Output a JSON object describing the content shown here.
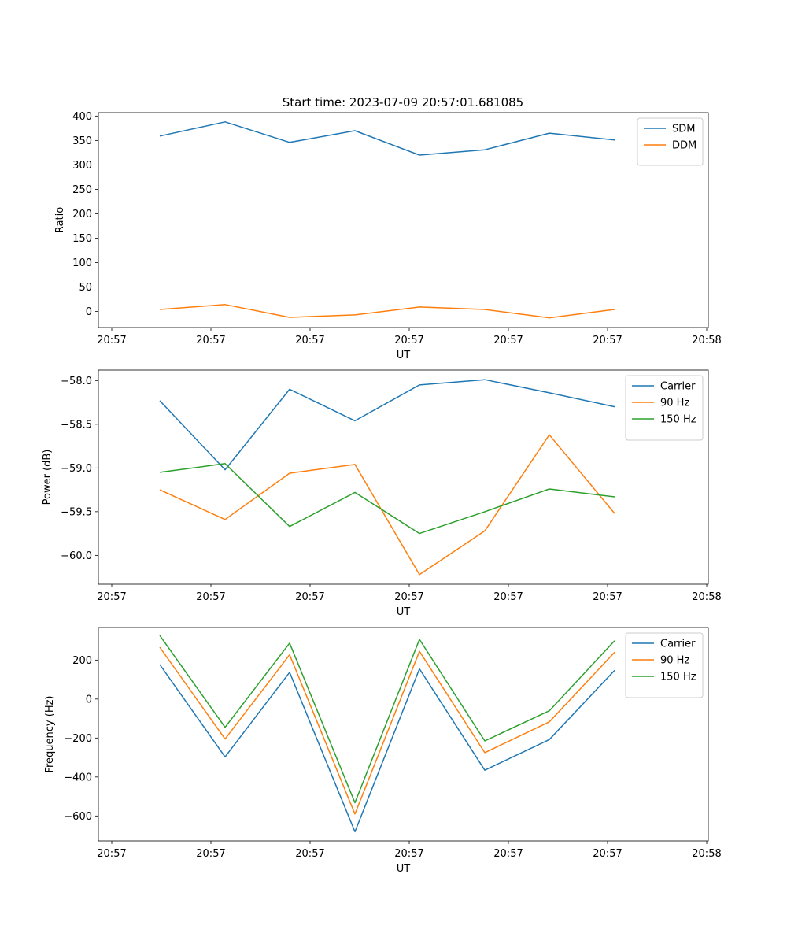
{
  "title": "Start time: 2023-07-09 20:57:01.681085",
  "colors": {
    "blue": "#1f77b4",
    "orange": "#ff7f0e",
    "green": "#2ca02c"
  },
  "chart_data": [
    {
      "type": "line",
      "xlabel": "UT",
      "ylabel": "Ratio",
      "x_tick_labels": [
        "20:57",
        "20:57",
        "20:57",
        "20:57",
        "20:57",
        "20:57",
        "20:58"
      ],
      "y_ticks": [
        0,
        50,
        100,
        150,
        200,
        250,
        300,
        350,
        400
      ],
      "y_tick_labels": [
        "0",
        "50",
        "100",
        "150",
        "200",
        "250",
        "300",
        "350",
        "400"
      ],
      "ylim": [
        -33,
        407
      ],
      "legend_position": "top-right",
      "series": [
        {
          "name": "SDM",
          "color": "#1f77b4",
          "values": [
            359,
            388,
            346,
            370,
            320,
            331,
            365,
            351
          ]
        },
        {
          "name": "DDM",
          "color": "#ff7f0e",
          "values": [
            4,
            14,
            -12,
            -7,
            9,
            4,
            -13,
            4
          ]
        }
      ]
    },
    {
      "type": "line",
      "xlabel": "UT",
      "ylabel": "Power (dB)",
      "x_tick_labels": [
        "20:57",
        "20:57",
        "20:57",
        "20:57",
        "20:57",
        "20:57",
        "20:58"
      ],
      "y_ticks": [
        -60.0,
        -59.5,
        -59.0,
        -58.5,
        -58.0
      ],
      "y_tick_labels": [
        "−60.0",
        "−59.5",
        "−59.0",
        "−58.5",
        "−58.0"
      ],
      "ylim": [
        -60.33,
        -57.88
      ],
      "legend_position": "top-right",
      "series": [
        {
          "name": "Carrier",
          "color": "#1f77b4",
          "values": [
            -58.23,
            -59.02,
            -58.1,
            -58.46,
            -58.05,
            -57.99,
            -58.14,
            -58.3
          ]
        },
        {
          "name": "90 Hz",
          "color": "#ff7f0e",
          "values": [
            -59.25,
            -59.59,
            -59.06,
            -58.96,
            -60.22,
            -59.72,
            -58.62,
            -59.52
          ]
        },
        {
          "name": "150 Hz",
          "color": "#2ca02c",
          "values": [
            -59.05,
            -58.95,
            -59.67,
            -59.28,
            -59.75,
            -59.5,
            -59.24,
            -59.33
          ]
        }
      ]
    },
    {
      "type": "line",
      "xlabel": "UT",
      "ylabel": "Frequency (Hz)",
      "x_tick_labels": [
        "20:57",
        "20:57",
        "20:57",
        "20:57",
        "20:57",
        "20:57",
        "20:58"
      ],
      "y_ticks": [
        -600,
        -400,
        -200,
        0,
        200
      ],
      "y_tick_labels": [
        "−600",
        "−400",
        "−200",
        "0",
        "200"
      ],
      "ylim": [
        -728,
        367
      ],
      "legend_position": "top-right",
      "series": [
        {
          "name": "Carrier",
          "color": "#1f77b4",
          "values": [
            177,
            -297,
            137,
            -681,
            155,
            -365,
            -208,
            147
          ]
        },
        {
          "name": "90 Hz",
          "color": "#ff7f0e",
          "values": [
            266,
            -205,
            227,
            -590,
            245,
            -275,
            -117,
            240
          ]
        },
        {
          "name": "150 Hz",
          "color": "#2ca02c",
          "values": [
            326,
            -145,
            287,
            -532,
            306,
            -215,
            -60,
            299
          ]
        }
      ]
    }
  ]
}
